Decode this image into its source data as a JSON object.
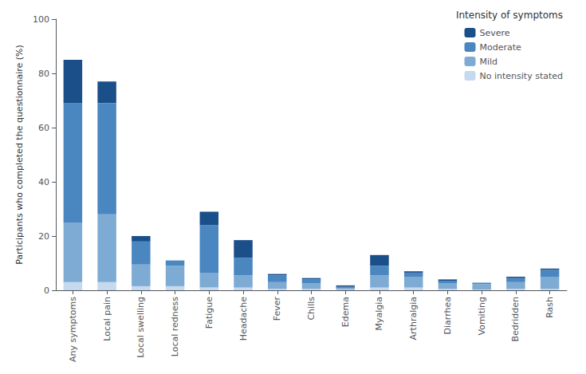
{
  "chart_data": {
    "type": "bar",
    "stacked": true,
    "categories": [
      "Any symptoms",
      "Local pain",
      "Local swelling",
      "Local redness",
      "Fatigue",
      "Headache",
      "Fever",
      "Chills",
      "Edema",
      "Myalgia",
      "Arthralgia",
      "Diarrhea",
      "Vomiting",
      "Bedridden",
      "Rash"
    ],
    "series": [
      {
        "name": "No intensity stated",
        "color": "#c5d9ef",
        "values": [
          3.0,
          3.0,
          1.5,
          1.5,
          1.0,
          1.0,
          0.5,
          0.5,
          0.3,
          1.0,
          1.0,
          0.5,
          0.3,
          0.5,
          0.5
        ]
      },
      {
        "name": "Mild",
        "color": "#7eabd4",
        "values": [
          22.0,
          25.0,
          8.0,
          7.5,
          5.5,
          4.5,
          2.5,
          2.0,
          0.5,
          4.5,
          4.0,
          2.0,
          2.0,
          2.5,
          4.5
        ]
      },
      {
        "name": "Moderate",
        "color": "#4a86c0",
        "values": [
          44.0,
          41.0,
          8.5,
          2.0,
          17.5,
          6.5,
          2.5,
          1.5,
          0.5,
          3.5,
          1.5,
          1.0,
          0.5,
          1.5,
          2.5
        ]
      },
      {
        "name": "Severe",
        "color": "#1b4f8a",
        "values": [
          16.0,
          8.0,
          2.0,
          0.0,
          5.0,
          6.5,
          0.5,
          0.5,
          0.5,
          4.0,
          0.5,
          0.5,
          0.0,
          0.5,
          0.5
        ]
      }
    ],
    "ylabel": "Participants who completed the questionnaire (%)",
    "legend_title": "Intensity of symptoms",
    "legend": "upper right",
    "ylim": [
      0,
      100
    ],
    "yticks": [
      0,
      20,
      40,
      60,
      80,
      100
    ],
    "grid": false
  }
}
